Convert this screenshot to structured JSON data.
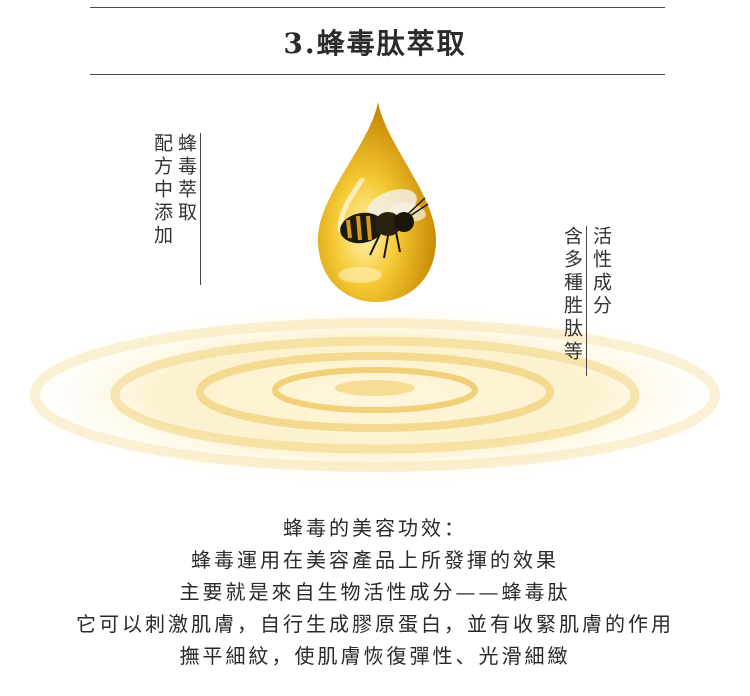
{
  "header": {
    "title": "3.蜂毒肽萃取"
  },
  "left_label": {
    "col1": "蜂毒萃取",
    "col2": "配方中添加"
  },
  "right_label": {
    "col1": "活性成分",
    "col2": "含多種胜肽等"
  },
  "description": {
    "heading": "蜂毒的美容功效：",
    "line1": "蜂毒運用在美容產品上所發揮的效果",
    "line2": "主要就是來自生物活性成分——蜂毒肽",
    "line3": "它可以刺激肌膚，自行生成膠原蛋白，並有收緊肌膚的作用",
    "line4": "撫平細紋，使肌膚恢復彈性、光滑細緻"
  },
  "colors": {
    "gold": "#e7b21f",
    "gold_light": "#f7e3a0",
    "text": "#2a2a2a"
  }
}
